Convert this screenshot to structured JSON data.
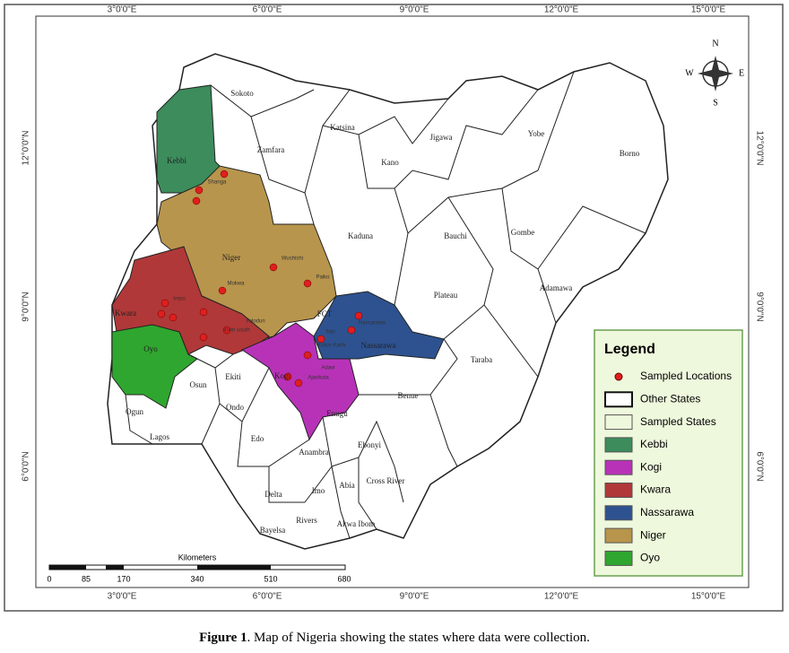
{
  "map": {
    "x_labels": [
      "3°0'0\"E",
      "6°0'0\"E",
      "9°0'0\"E",
      "12°0'0\"E",
      "15°0'0\"E"
    ],
    "y_labels": [
      "12°0'0\"N",
      "9°0'0\"N",
      "6°0'0\"N"
    ],
    "states": [
      "Sokoto",
      "Kebbi",
      "Zamfara",
      "Katsina",
      "Kano",
      "Jigawa",
      "Yobe",
      "Borno",
      "Kaduna",
      "Bauchi",
      "Gombe",
      "Niger",
      "Kwara",
      "Oyo",
      "Plateau",
      "FCT",
      "Nassarawa",
      "Adamawa",
      "Taraba",
      "Kogi",
      "Benue",
      "Osun",
      "Ekiti",
      "Ondo",
      "Ogun",
      "Lagos",
      "Edo",
      "Enugu",
      "Ebonyi",
      "Anambra",
      "Delta",
      "Imo",
      "Abia",
      "Cross River",
      "Rivers",
      "Akwa Ibom",
      "Bayelsa"
    ],
    "places": [
      "Shanga",
      "Wushishi",
      "Paiko",
      "Mokwa",
      "Irepo",
      "Ilorin south",
      "Ifelodun",
      "Nassarawa",
      "Toto",
      "Koton Karfe",
      "Adavi",
      "Ajaokuta"
    ],
    "legend": {
      "title": "Legend",
      "items": [
        {
          "label": "Sampled Locations",
          "color": "#e01e1e"
        },
        {
          "label": "Other States",
          "color": "#ffffff"
        },
        {
          "label": "Sampled States",
          "color": "#eef8dc"
        },
        {
          "label": "Kebbi",
          "color": "#3c8c5c"
        },
        {
          "label": "Kogi",
          "color": "#b832b8"
        },
        {
          "label": "Kwara",
          "color": "#b03838"
        },
        {
          "label": "Nassarawa",
          "color": "#2e5290"
        },
        {
          "label": "Niger",
          "color": "#b8954c"
        },
        {
          "label": "Oyo",
          "color": "#2fa62f"
        }
      ]
    },
    "scale": {
      "title": "Kilometers",
      "ticks": [
        0,
        85,
        170,
        340,
        510,
        680
      ]
    },
    "compass": {
      "n": "N",
      "s": "S",
      "e": "E",
      "w": "W"
    }
  },
  "caption": {
    "label": "Figure 1",
    "text": ". Map of Nigeria showing the states where data were collection."
  }
}
